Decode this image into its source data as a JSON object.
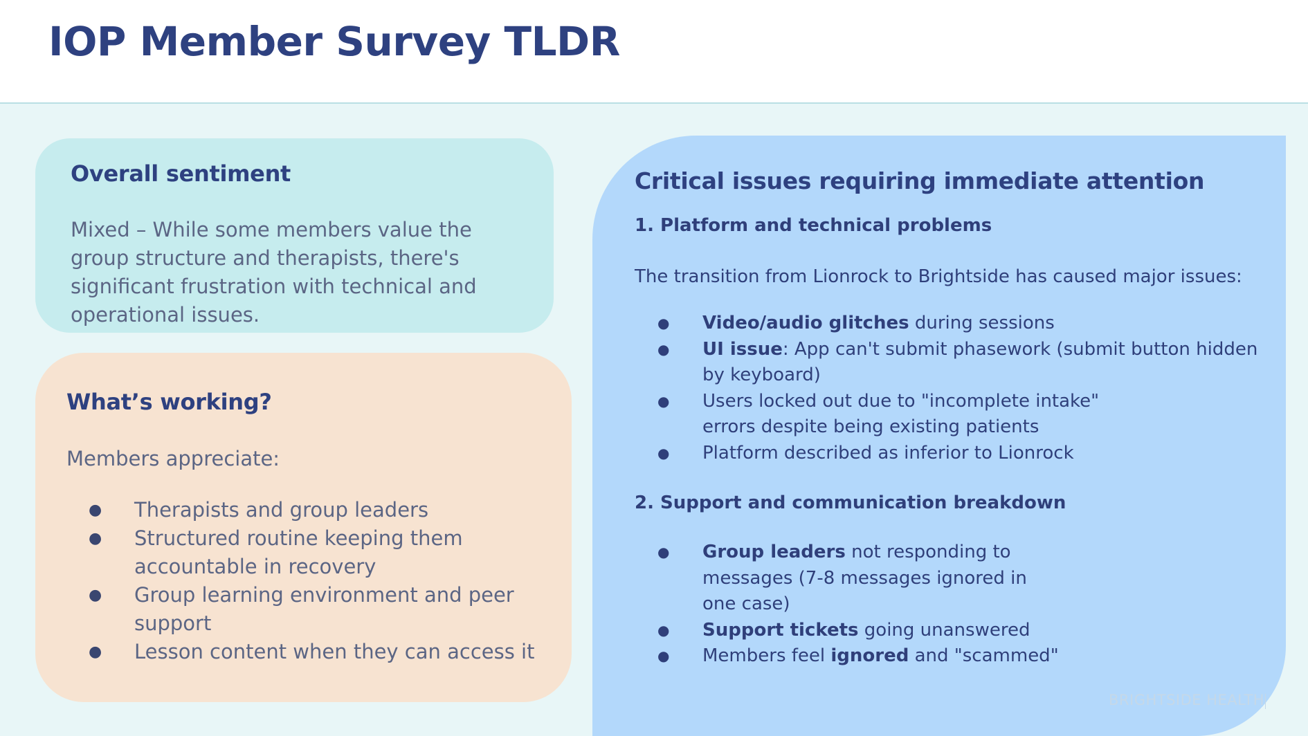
{
  "title": "IOP Member Survey TLDR",
  "sentiment": {
    "heading": "Overall sentiment",
    "body": "Mixed – While some members value the group structure and therapists, there's significant frustration with technical and operational issues."
  },
  "working": {
    "heading": "What’s working?",
    "intro": "Members appreciate:",
    "items": [
      "Therapists and group leaders",
      "Structured routine keeping them accountable in recovery",
      "Group learning environment and peer support",
      "Lesson content when they can access it"
    ]
  },
  "critical": {
    "heading": "Critical issues requiring immediate attention",
    "section1": {
      "heading": "1. Platform and technical problems",
      "intro": "The transition from Lionrock to Brightside has caused major issues:",
      "items": [
        {
          "bold": "Video/audio glitches",
          "rest": " during sessions"
        },
        {
          "bold": "UI issue",
          "rest": ": App can't submit phasework (submit button hidden by keyboard)"
        },
        {
          "bold": "",
          "rest": "Users locked out due to \"incomplete intake\" errors despite being existing patients"
        },
        {
          "bold": "",
          "rest": "Platform described as inferior to Lionrock"
        }
      ]
    },
    "section2": {
      "heading": "2. Support and communication breakdown",
      "items": [
        {
          "bold": "Group leaders",
          "rest": " not responding to messages (7-8 messages ignored in one case)"
        },
        {
          "bold": "Support tickets",
          "rest": " going unanswered"
        },
        {
          "pre": "Members feel ",
          "bold": "ignored",
          "rest": " and \"scammed\""
        }
      ]
    }
  },
  "footer": {
    "brand": "BRIGHTSIDE HEALTH"
  },
  "bullet_glyph": "●"
}
